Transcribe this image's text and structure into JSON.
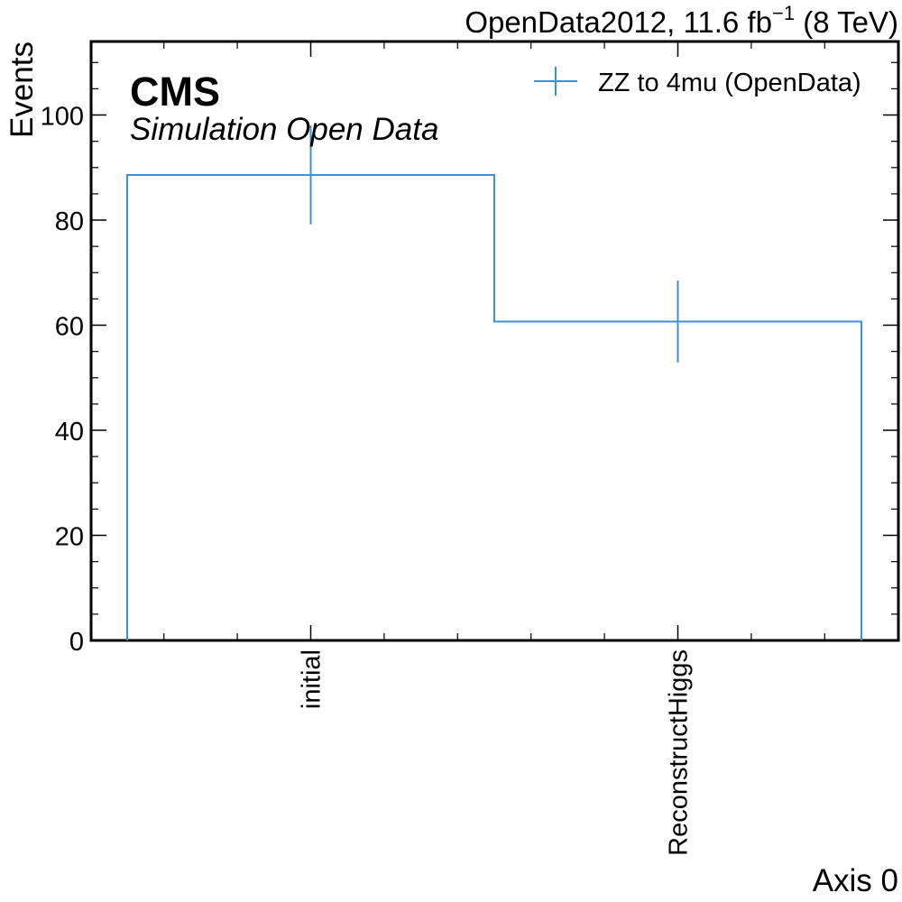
{
  "chart_data": {
    "type": "bar",
    "style": "step-histogram-with-error-bars",
    "header": {
      "experiment": "CMS",
      "subtitle": "Simulation Open Data",
      "lumi_prefix": "OpenData2012, 11.6 fb",
      "lumi_exp": "−1",
      "lumi_suffix": " (8 TeV)"
    },
    "xlabel": "Axis 0",
    "ylabel": "Events",
    "categories": [
      "initial",
      "ReconstructHiggs"
    ],
    "series": [
      {
        "name": "ZZ to 4mu (OpenData)",
        "values": [
          88.6,
          60.7
        ],
        "errors": [
          9.4,
          7.8
        ],
        "color": "#3f90da"
      }
    ],
    "ylim": [
      0,
      114
    ],
    "yticks": [
      0,
      20,
      40,
      60,
      80,
      100
    ],
    "legend_position": "top-right",
    "grid": false
  }
}
